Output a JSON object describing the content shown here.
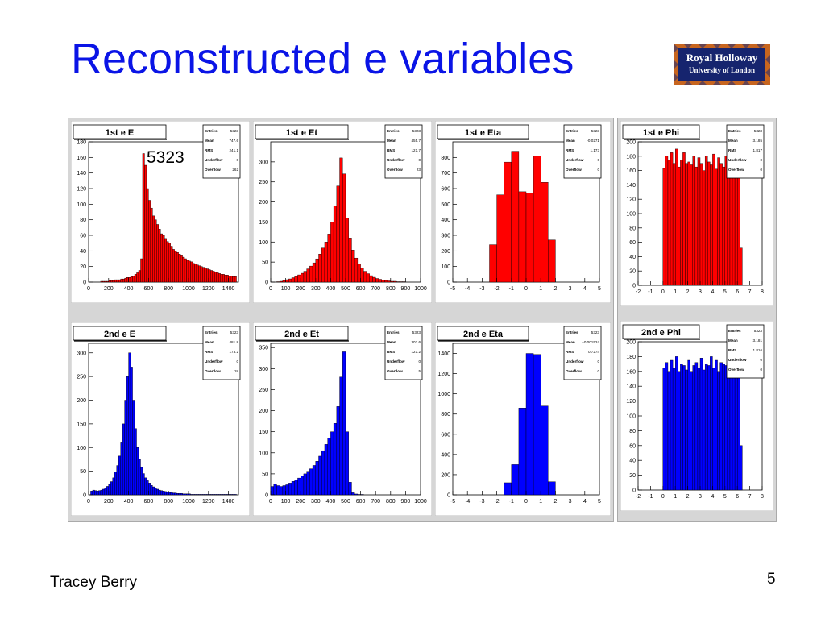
{
  "slide": {
    "title": "Reconstructed e variables",
    "author": "Tracey Berry",
    "page_number": "5",
    "annotation": "5323"
  },
  "logo": {
    "line1": "Royal Holloway",
    "line2": "University of London",
    "colors": {
      "background": "#16246e",
      "border": "#c7651f"
    }
  },
  "colors": {
    "title": "#0a14e6",
    "electron1": "#ff0000",
    "electron2": "#0000ff"
  },
  "chart_data": [
    {
      "type": "bar",
      "title": "1st e E",
      "color": "#ff0000",
      "stats": [
        [
          "Entries",
          "5323"
        ],
        [
          "Mean",
          "747.6"
        ],
        [
          "RMS",
          "241.1"
        ],
        [
          "Underflow",
          "0"
        ],
        [
          "Overflow",
          "262"
        ]
      ],
      "xlim": [
        0,
        1500
      ],
      "ylim": [
        0,
        180
      ],
      "xticks": [
        0,
        200,
        400,
        600,
        800,
        1000,
        1200,
        1400
      ],
      "yticks": [
        0,
        20,
        40,
        60,
        80,
        100,
        120,
        140,
        160,
        180
      ],
      "x": [
        10,
        30,
        50,
        70,
        90,
        110,
        130,
        150,
        170,
        190,
        210,
        230,
        250,
        270,
        290,
        310,
        330,
        350,
        370,
        390,
        410,
        430,
        450,
        470,
        490,
        510,
        530,
        550,
        570,
        590,
        610,
        630,
        650,
        670,
        690,
        710,
        730,
        750,
        770,
        790,
        810,
        830,
        850,
        870,
        890,
        910,
        930,
        950,
        970,
        990,
        1010,
        1030,
        1050,
        1070,
        1090,
        1110,
        1130,
        1150,
        1170,
        1190,
        1210,
        1230,
        1250,
        1270,
        1290,
        1310,
        1330,
        1350,
        1370,
        1390,
        1410,
        1430,
        1450,
        1470
      ],
      "values": [
        0,
        0,
        0,
        0,
        0,
        0,
        1,
        1,
        1,
        1,
        2,
        2,
        2,
        3,
        3,
        3,
        4,
        4,
        5,
        6,
        6,
        7,
        8,
        10,
        12,
        15,
        30,
        165,
        150,
        120,
        105,
        95,
        85,
        80,
        74,
        68,
        62,
        60,
        56,
        52,
        50,
        46,
        42,
        40,
        38,
        36,
        34,
        32,
        30,
        28,
        27,
        26,
        24,
        23,
        22,
        21,
        20,
        19,
        18,
        17,
        16,
        15,
        14,
        13,
        12,
        11,
        10,
        10,
        9,
        9,
        8,
        8,
        7,
        7
      ]
    },
    {
      "type": "bar",
      "title": "1st e Et",
      "color": "#ff0000",
      "stats": [
        [
          "Entries",
          "5323"
        ],
        [
          "Mean",
          "455.7"
        ],
        [
          "RMS",
          "121.7"
        ],
        [
          "Underflow",
          "0"
        ],
        [
          "Overflow",
          "23"
        ]
      ],
      "xlim": [
        0,
        1000
      ],
      "ylim": [
        0,
        350
      ],
      "xticks": [
        0,
        100,
        200,
        300,
        400,
        500,
        600,
        700,
        800,
        900,
        1000
      ],
      "yticks": [
        0,
        50,
        100,
        150,
        200,
        250,
        300
      ],
      "x": [
        10,
        30,
        50,
        70,
        90,
        110,
        130,
        150,
        170,
        190,
        210,
        230,
        250,
        270,
        290,
        310,
        330,
        350,
        370,
        390,
        410,
        430,
        450,
        470,
        490,
        510,
        530,
        550,
        570,
        590,
        610,
        630,
        650,
        670,
        690,
        710,
        730,
        750,
        770,
        790,
        810,
        830,
        850,
        870,
        890,
        910,
        930,
        950,
        970,
        990
      ],
      "values": [
        0,
        0,
        1,
        2,
        4,
        6,
        8,
        11,
        14,
        18,
        22,
        27,
        33,
        40,
        48,
        58,
        70,
        85,
        100,
        120,
        150,
        190,
        240,
        310,
        270,
        160,
        110,
        80,
        60,
        45,
        35,
        27,
        21,
        16,
        12,
        9,
        7,
        5,
        4,
        3,
        2,
        2,
        1,
        1,
        1,
        0,
        0,
        0,
        0,
        0
      ]
    },
    {
      "type": "bar",
      "title": "1st e Eta",
      "color": "#ff0000",
      "stats": [
        [
          "Entries",
          "5323"
        ],
        [
          "Mean",
          "-0.0271"
        ],
        [
          "RMS",
          "1.173"
        ],
        [
          "Underflow",
          "0"
        ],
        [
          "Overflow",
          "0"
        ]
      ],
      "xlim": [
        -5,
        5
      ],
      "ylim": [
        0,
        900
      ],
      "xticks": [
        -5,
        -4,
        -3,
        -2,
        -1,
        0,
        1,
        2,
        3,
        4,
        5
      ],
      "yticks": [
        0,
        100,
        200,
        300,
        400,
        500,
        600,
        700,
        800
      ],
      "x": [
        -2.25,
        -1.75,
        -1.25,
        -0.75,
        -0.25,
        0.25,
        0.75,
        1.25,
        1.75,
        2.25
      ],
      "values": [
        240,
        560,
        770,
        840,
        580,
        570,
        810,
        640,
        270,
        0
      ]
    },
    {
      "type": "bar",
      "title": "1st e Phi",
      "color": "#ff0000",
      "stats": [
        [
          "Entries",
          "5323"
        ],
        [
          "Mean",
          "3.185"
        ],
        [
          "RMS",
          "1.817"
        ],
        [
          "Underflow",
          "0"
        ],
        [
          "Overflow",
          "0"
        ]
      ],
      "xlim": [
        -2,
        8
      ],
      "ylim": [
        0,
        200
      ],
      "xticks": [
        -2,
        -1,
        0,
        1,
        2,
        3,
        4,
        5,
        6,
        7,
        8
      ],
      "yticks": [
        0,
        20,
        40,
        60,
        80,
        100,
        120,
        140,
        160,
        180,
        200
      ],
      "x": [
        0.1,
        0.3,
        0.5,
        0.7,
        0.9,
        1.1,
        1.3,
        1.5,
        1.7,
        1.9,
        2.1,
        2.3,
        2.5,
        2.7,
        2.9,
        3.1,
        3.3,
        3.5,
        3.7,
        3.9,
        4.1,
        4.3,
        4.5,
        4.7,
        4.9,
        5.1,
        5.3,
        5.5,
        5.7,
        5.9,
        6.1,
        6.3
      ],
      "values": [
        163,
        180,
        175,
        185,
        170,
        190,
        165,
        175,
        185,
        170,
        172,
        168,
        180,
        165,
        178,
        170,
        160,
        180,
        172,
        168,
        183,
        162,
        178,
        170,
        165,
        180,
        172,
        190,
        168,
        160,
        176,
        52
      ]
    },
    {
      "type": "bar",
      "title": "2nd e E",
      "color": "#0000ff",
      "stats": [
        [
          "Entries",
          "5323"
        ],
        [
          "Mean",
          "481.8"
        ],
        [
          "RMS",
          "173.2"
        ],
        [
          "Underflow",
          "0"
        ],
        [
          "Overflow",
          "18"
        ]
      ],
      "xlim": [
        0,
        1500
      ],
      "ylim": [
        0,
        320
      ],
      "xticks": [
        0,
        200,
        400,
        600,
        800,
        1000,
        1200,
        1400
      ],
      "yticks": [
        0,
        50,
        100,
        150,
        200,
        250,
        300
      ],
      "x": [
        10,
        30,
        50,
        70,
        90,
        110,
        130,
        150,
        170,
        190,
        210,
        230,
        250,
        270,
        290,
        310,
        330,
        350,
        370,
        390,
        410,
        430,
        450,
        470,
        490,
        510,
        530,
        550,
        570,
        590,
        610,
        630,
        650,
        670,
        690,
        710,
        730,
        750,
        770,
        790,
        810,
        830,
        850,
        870,
        890,
        910,
        930,
        950,
        970,
        990,
        1010,
        1030,
        1050,
        1070,
        1090,
        1110,
        1130,
        1150,
        1170,
        1190,
        1210,
        1230,
        1250,
        1270,
        1290,
        1310,
        1330,
        1350,
        1370,
        1390,
        1410,
        1430,
        1450,
        1470
      ],
      "values": [
        0,
        8,
        10,
        9,
        8,
        9,
        10,
        12,
        14,
        18,
        22,
        28,
        36,
        48,
        62,
        82,
        110,
        150,
        200,
        250,
        300,
        270,
        200,
        140,
        100,
        75,
        58,
        45,
        36,
        30,
        25,
        20,
        17,
        14,
        12,
        10,
        9,
        8,
        7,
        6,
        5,
        5,
        4,
        4,
        3,
        3,
        3,
        2,
        2,
        2,
        2,
        1,
        1,
        1,
        1,
        1,
        1,
        1,
        1,
        1,
        1,
        1,
        1,
        1,
        1,
        1,
        1,
        1,
        1,
        1,
        1,
        1,
        1,
        1
      ]
    },
    {
      "type": "bar",
      "title": "2nd e Et",
      "color": "#0000ff",
      "stats": [
        [
          "Entries",
          "5323"
        ],
        [
          "Mean",
          "303.6"
        ],
        [
          "RMS",
          "121.2"
        ],
        [
          "Underflow",
          "0"
        ],
        [
          "Overflow",
          "5"
        ]
      ],
      "xlim": [
        0,
        1000
      ],
      "ylim": [
        0,
        360
      ],
      "xticks": [
        0,
        100,
        200,
        300,
        400,
        500,
        600,
        700,
        800,
        900,
        1000
      ],
      "yticks": [
        0,
        50,
        100,
        150,
        200,
        250,
        300,
        350
      ],
      "x": [
        10,
        30,
        50,
        70,
        90,
        110,
        130,
        150,
        170,
        190,
        210,
        230,
        250,
        270,
        290,
        310,
        330,
        350,
        370,
        390,
        410,
        430,
        450,
        470,
        490,
        510,
        530,
        550,
        570,
        590,
        610,
        630,
        650,
        670,
        690,
        710,
        730,
        750,
        770,
        790,
        810,
        830,
        850,
        870,
        890,
        910,
        930,
        950,
        970,
        990
      ],
      "values": [
        20,
        25,
        22,
        20,
        22,
        24,
        28,
        32,
        36,
        40,
        45,
        50,
        56,
        62,
        70,
        80,
        92,
        105,
        120,
        135,
        150,
        170,
        210,
        280,
        340,
        150,
        30,
        5,
        2,
        1,
        1,
        0,
        0,
        0,
        0,
        0,
        0,
        0,
        0,
        0,
        0,
        0,
        0,
        0,
        0,
        0,
        0,
        0,
        0,
        0
      ]
    },
    {
      "type": "bar",
      "title": "2nd e Eta",
      "color": "#0000ff",
      "stats": [
        [
          "Entries",
          "5323"
        ],
        [
          "Mean",
          "-0.001524"
        ],
        [
          "RMS",
          "0.7274"
        ],
        [
          "Underflow",
          "0"
        ],
        [
          "Overflow",
          "0"
        ]
      ],
      "xlim": [
        -5,
        5
      ],
      "ylim": [
        0,
        1500
      ],
      "xticks": [
        -5,
        -4,
        -3,
        -2,
        -1,
        0,
        1,
        2,
        3,
        4,
        5
      ],
      "yticks": [
        0,
        200,
        400,
        600,
        800,
        1000,
        1200,
        1400
      ],
      "x": [
        -1.75,
        -1.25,
        -0.75,
        -0.25,
        0.25,
        0.75,
        1.25,
        1.75
      ],
      "values": [
        0,
        120,
        300,
        860,
        1400,
        1390,
        880,
        130
      ]
    },
    {
      "type": "bar",
      "title": "2nd e Phi",
      "color": "#0000ff",
      "stats": [
        [
          "Entries",
          "5323"
        ],
        [
          "Mean",
          "3.181"
        ],
        [
          "RMS",
          "1.816"
        ],
        [
          "Underflow",
          "0"
        ],
        [
          "Overflow",
          "0"
        ]
      ],
      "xlim": [
        -2,
        8
      ],
      "ylim": [
        0,
        200
      ],
      "xticks": [
        -2,
        -1,
        0,
        1,
        2,
        3,
        4,
        5,
        6,
        7,
        8
      ],
      "yticks": [
        0,
        20,
        40,
        60,
        80,
        100,
        120,
        140,
        160,
        180,
        200
      ],
      "x": [
        0.1,
        0.3,
        0.5,
        0.7,
        0.9,
        1.1,
        1.3,
        1.5,
        1.7,
        1.9,
        2.1,
        2.3,
        2.5,
        2.7,
        2.9,
        3.1,
        3.3,
        3.5,
        3.7,
        3.9,
        4.1,
        4.3,
        4.5,
        4.7,
        4.9,
        5.1,
        5.3,
        5.5,
        5.7,
        5.9,
        6.1,
        6.3
      ],
      "values": [
        165,
        172,
        160,
        175,
        165,
        180,
        160,
        170,
        168,
        162,
        175,
        160,
        168,
        172,
        165,
        178,
        162,
        170,
        168,
        180,
        165,
        175,
        160,
        172,
        170,
        168,
        190,
        165,
        172,
        160,
        170,
        60
      ]
    }
  ]
}
